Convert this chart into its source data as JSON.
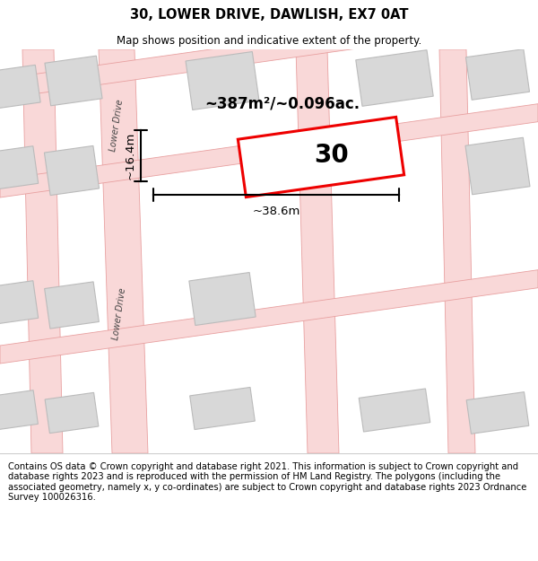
{
  "title": "30, LOWER DRIVE, DAWLISH, EX7 0AT",
  "subtitle": "Map shows position and indicative extent of the property.",
  "footer": "Contains OS data © Crown copyright and database right 2021. This information is subject to Crown copyright and database rights 2023 and is reproduced with the permission of HM Land Registry. The polygons (including the associated geometry, namely x, y co-ordinates) are subject to Crown copyright and database rights 2023 Ordnance Survey 100026316.",
  "map_bg": "#ebebeb",
  "road_fill": "#f9d8d8",
  "road_edge": "#e8a0a0",
  "bldg_fill": "#d8d8d8",
  "bldg_edge": "#bbbbbb",
  "highlight_color": "#ee0000",
  "road_label": "Lower Drive",
  "area_label": "~387m²/~0.096ac.",
  "plot_number": "30",
  "dim_width": "~38.6m",
  "dim_height": "~16.4m",
  "title_fontsize": 10.5,
  "subtitle_fontsize": 8.5,
  "footer_fontsize": 7.2,
  "title_bold": true
}
